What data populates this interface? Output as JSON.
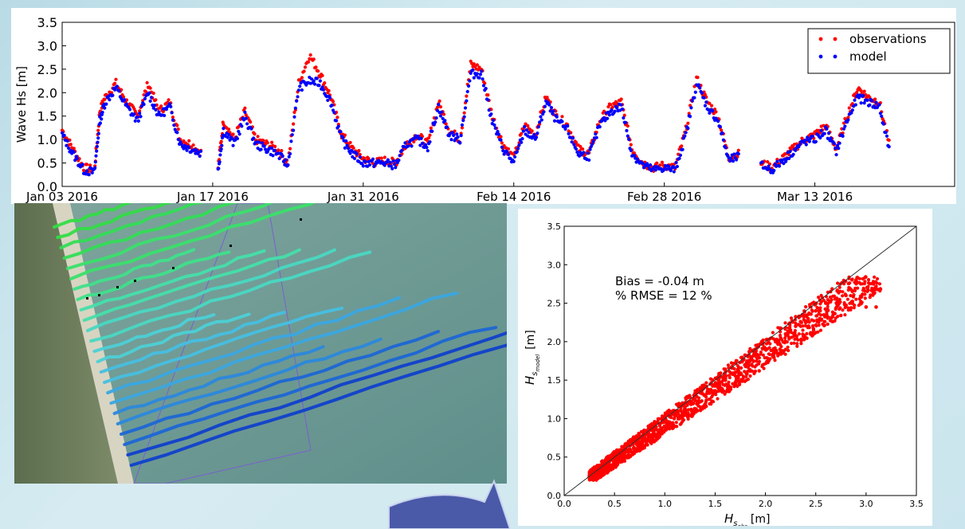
{
  "chart_data": [
    {
      "type": "scatter",
      "title": "",
      "xlabel": "",
      "ylabel": "Wave Hs [m]",
      "ylim": [
        0.0,
        3.5
      ],
      "y_ticks": [
        "0.0",
        "0.5",
        "1.0",
        "1.5",
        "2.0",
        "2.5",
        "3.0",
        "3.5"
      ],
      "x_ticks": [
        "Jan 03 2016",
        "Jan 17 2016",
        "Jan 31 2016",
        "Feb 14 2016",
        "Feb 28 2016",
        "Mar 13 2016"
      ],
      "x_tick_days": [
        2,
        16,
        30,
        44,
        58,
        72
      ],
      "xlim_days": [
        2,
        85
      ],
      "x_day_origin": "2016-01-01",
      "legend_position": "top-right",
      "grid": false,
      "series": [
        {
          "name": "observations",
          "color": "#ff0000",
          "points": [
            [
              2,
              1.2
            ],
            [
              3,
              0.8
            ],
            [
              4,
              0.4
            ],
            [
              5,
              0.35
            ],
            [
              5.5,
              1.6
            ],
            [
              6,
              1.9
            ],
            [
              7,
              2.2
            ],
            [
              8,
              1.8
            ],
            [
              9,
              1.5
            ],
            [
              10,
              2.2
            ],
            [
              11,
              1.6
            ],
            [
              12,
              1.8
            ],
            [
              13,
              1.0
            ],
            [
              14,
              0.9
            ],
            [
              15,
              0.7
            ],
            [
              16.5,
              0.4
            ],
            [
              17,
              1.4
            ],
            [
              18,
              1.0
            ],
            [
              19,
              1.6
            ],
            [
              20,
              1.0
            ],
            [
              21,
              0.9
            ],
            [
              22,
              0.8
            ],
            [
              23,
              0.5
            ],
            [
              24,
              2.2
            ],
            [
              25,
              2.8
            ],
            [
              26,
              2.4
            ],
            [
              27,
              1.9
            ],
            [
              28,
              1.1
            ],
            [
              29,
              0.8
            ],
            [
              30,
              0.6
            ],
            [
              31,
              0.5
            ],
            [
              32,
              0.55
            ],
            [
              33,
              0.5
            ],
            [
              34,
              0.9
            ],
            [
              35,
              1.1
            ],
            [
              36,
              0.9
            ],
            [
              37,
              1.8
            ],
            [
              38,
              1.2
            ],
            [
              39,
              1.0
            ],
            [
              40,
              2.6
            ],
            [
              41,
              2.5
            ],
            [
              42,
              1.5
            ],
            [
              43,
              0.9
            ],
            [
              44,
              0.6
            ],
            [
              45,
              1.3
            ],
            [
              46,
              1.1
            ],
            [
              47,
              1.9
            ],
            [
              48,
              1.5
            ],
            [
              49,
              1.3
            ],
            [
              50,
              0.8
            ],
            [
              51,
              0.7
            ],
            [
              52,
              1.4
            ],
            [
              53,
              1.7
            ],
            [
              54,
              1.8
            ],
            [
              55,
              0.8
            ],
            [
              56,
              0.5
            ],
            [
              57,
              0.4
            ],
            [
              58,
              0.45
            ],
            [
              59,
              0.4
            ],
            [
              60,
              1.2
            ],
            [
              61,
              2.3
            ],
            [
              62,
              1.8
            ],
            [
              63,
              1.5
            ],
            [
              64,
              0.6
            ],
            [
              65,
              0.7
            ],
            [
              67,
              0.5
            ],
            [
              68,
              0.4
            ],
            [
              69,
              0.6
            ],
            [
              70,
              0.8
            ],
            [
              71,
              1.0
            ],
            [
              72,
              1.1
            ],
            [
              73,
              1.3
            ],
            [
              74,
              0.8
            ],
            [
              75,
              1.5
            ],
            [
              76,
              2.1
            ],
            [
              77,
              1.9
            ],
            [
              78,
              1.8
            ],
            [
              79,
              0.8
            ]
          ]
        },
        {
          "name": "model",
          "color": "#0000ff",
          "points": [
            [
              2,
              1.1
            ],
            [
              3,
              0.7
            ],
            [
              4,
              0.35
            ],
            [
              5,
              0.3
            ],
            [
              5.5,
              1.4
            ],
            [
              6,
              1.8
            ],
            [
              7,
              2.1
            ],
            [
              8,
              1.7
            ],
            [
              9,
              1.4
            ],
            [
              10,
              2.0
            ],
            [
              11,
              1.5
            ],
            [
              12,
              1.7
            ],
            [
              13,
              0.9
            ],
            [
              14,
              0.8
            ],
            [
              15,
              0.7
            ],
            [
              16.5,
              0.35
            ],
            [
              17,
              1.2
            ],
            [
              18,
              0.9
            ],
            [
              19,
              1.5
            ],
            [
              20,
              0.9
            ],
            [
              21,
              0.8
            ],
            [
              22,
              0.7
            ],
            [
              23,
              0.45
            ],
            [
              24,
              2.1
            ],
            [
              25,
              2.25
            ],
            [
              26,
              2.2
            ],
            [
              27,
              1.8
            ],
            [
              28,
              1.0
            ],
            [
              29,
              0.7
            ],
            [
              30,
              0.5
            ],
            [
              31,
              0.5
            ],
            [
              32,
              0.5
            ],
            [
              33,
              0.45
            ],
            [
              34,
              0.9
            ],
            [
              35,
              1.0
            ],
            [
              36,
              0.85
            ],
            [
              37,
              1.7
            ],
            [
              38,
              1.1
            ],
            [
              39,
              1.0
            ],
            [
              40,
              2.4
            ],
            [
              41,
              2.4
            ],
            [
              42,
              1.4
            ],
            [
              43,
              0.8
            ],
            [
              44,
              0.5
            ],
            [
              45,
              1.2
            ],
            [
              46,
              1.0
            ],
            [
              47,
              1.8
            ],
            [
              48,
              1.4
            ],
            [
              49,
              1.2
            ],
            [
              50,
              0.7
            ],
            [
              51,
              0.65
            ],
            [
              52,
              1.3
            ],
            [
              53,
              1.6
            ],
            [
              54,
              1.7
            ],
            [
              55,
              0.7
            ],
            [
              56,
              0.45
            ],
            [
              57,
              0.35
            ],
            [
              58,
              0.4
            ],
            [
              59,
              0.35
            ],
            [
              60,
              1.1
            ],
            [
              61,
              2.2
            ],
            [
              62,
              1.7
            ],
            [
              63,
              1.4
            ],
            [
              64,
              0.55
            ],
            [
              65,
              0.65
            ],
            [
              67,
              0.45
            ],
            [
              68,
              0.35
            ],
            [
              69,
              0.55
            ],
            [
              70,
              0.75
            ],
            [
              71,
              0.95
            ],
            [
              72,
              1.0
            ],
            [
              73,
              1.2
            ],
            [
              74,
              0.75
            ],
            [
              75,
              1.4
            ],
            [
              76,
              1.9
            ],
            [
              77,
              1.8
            ],
            [
              78,
              1.7
            ],
            [
              79,
              0.7
            ]
          ]
        }
      ]
    },
    {
      "type": "scatter",
      "title": "",
      "xlabel": "H",
      "xlabel_sub": "s",
      "xlabel_subsub": "obs",
      "xlabel_unit": "[m]",
      "ylabel": "H",
      "ylabel_sub": "s",
      "ylabel_subsub": "model",
      "ylabel_unit": "[m]",
      "xlim": [
        0.0,
        3.5
      ],
      "ylim": [
        0.0,
        3.5
      ],
      "x_ticks": [
        "0.0",
        "0.5",
        "1.0",
        "1.5",
        "2.0",
        "2.5",
        "3.0",
        "3.5"
      ],
      "y_ticks": [
        "0.0",
        "0.5",
        "1.0",
        "1.5",
        "2.0",
        "2.5",
        "3.0",
        "3.5"
      ],
      "annotations": [
        "Bias = -0.04 m",
        "% RMSE = 12 %"
      ],
      "reference_line": "1:1",
      "series": [
        {
          "color": "#ff0000",
          "points": [
            [
              0.25,
              0.25
            ],
            [
              0.3,
              0.35
            ],
            [
              0.4,
              0.35
            ],
            [
              0.5,
              0.5
            ],
            [
              0.6,
              0.55
            ],
            [
              0.7,
              0.7
            ],
            [
              0.8,
              0.75
            ],
            [
              0.9,
              0.95
            ],
            [
              1.0,
              0.9
            ],
            [
              1.1,
              1.1
            ],
            [
              1.2,
              1.15
            ],
            [
              1.3,
              1.25
            ],
            [
              1.4,
              1.3
            ],
            [
              1.5,
              1.45
            ],
            [
              1.6,
              1.5
            ],
            [
              1.7,
              1.6
            ],
            [
              1.8,
              1.7
            ],
            [
              1.9,
              1.85
            ],
            [
              2.0,
              1.9
            ],
            [
              2.1,
              2.0
            ],
            [
              2.2,
              2.1
            ],
            [
              2.3,
              2.2
            ],
            [
              2.4,
              2.25
            ],
            [
              2.5,
              2.4
            ],
            [
              2.6,
              2.5
            ],
            [
              2.8,
              2.6
            ],
            [
              2.9,
              2.8
            ],
            [
              3.0,
              2.45
            ],
            [
              3.1,
              2.45
            ]
          ]
        }
      ]
    }
  ],
  "colors": {
    "observations": "#ff0000",
    "model": "#0000ff",
    "arrow": "#4a5aa8"
  }
}
